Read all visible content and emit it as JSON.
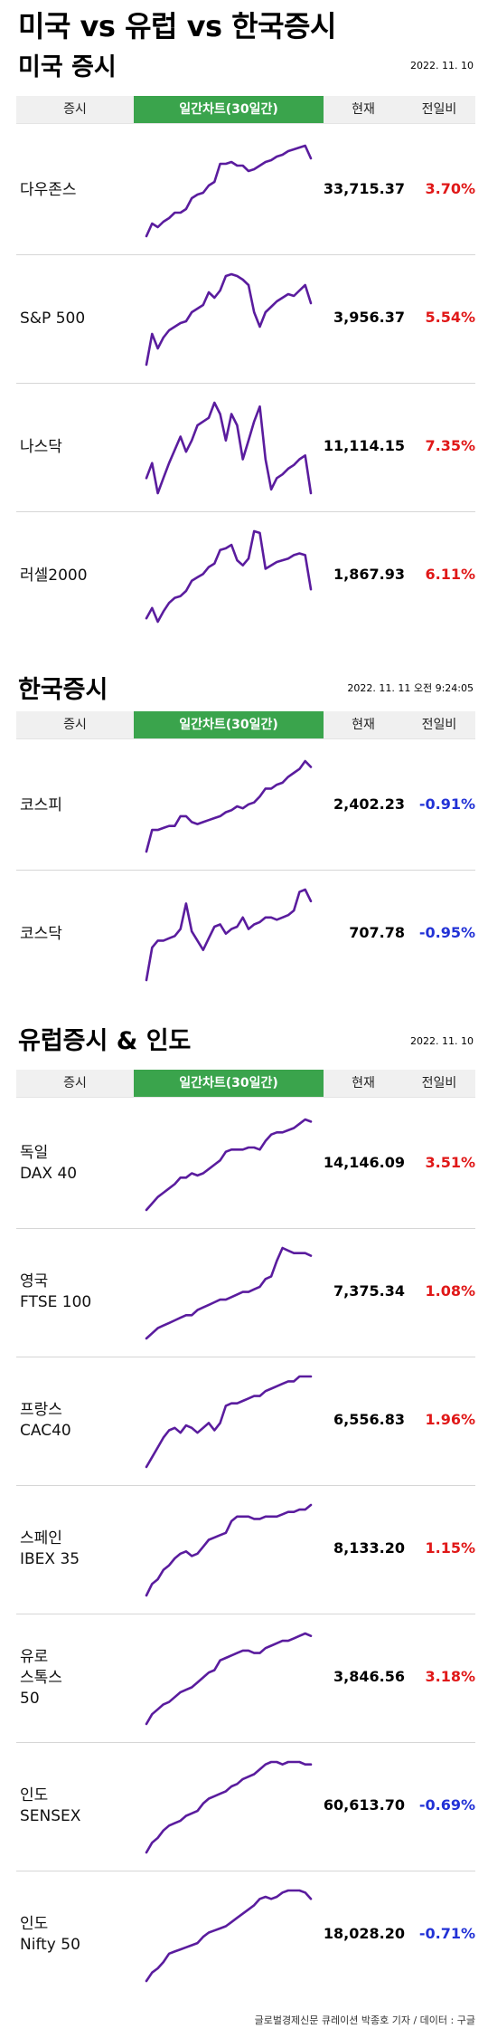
{
  "page": {
    "title": "미국 vs 유럽 vs 한국증시"
  },
  "header_labels": {
    "index": "증시",
    "chart": "일간차트(30일간)",
    "current": "현재",
    "change": "전일비"
  },
  "colors": {
    "line": "#5a1c9e",
    "header_accent": "#3aa44c",
    "up": "#e01818",
    "down": "#2232d6"
  },
  "sections": [
    {
      "title": "미국 증시",
      "date": "2022. 11. 10",
      "rows": [
        {
          "name": "다우존스",
          "current": "33,715.37",
          "change": "3.70%",
          "direction": "up",
          "series": [
            1,
            8,
            6,
            9,
            11,
            14,
            14,
            16,
            22,
            24,
            25,
            29,
            31,
            41,
            41,
            42,
            40,
            40,
            37,
            38,
            40,
            42,
            43,
            45,
            46,
            48,
            49,
            50,
            51,
            44
          ]
        },
        {
          "name": "S&P 500",
          "current": "3,956.37",
          "change": "5.54%",
          "direction": "up",
          "series": [
            1,
            18,
            10,
            16,
            20,
            22,
            24,
            25,
            30,
            32,
            34,
            41,
            38,
            42,
            50,
            51,
            50,
            48,
            45,
            30,
            22,
            30,
            33,
            36,
            38,
            40,
            39,
            42,
            45,
            35
          ]
        },
        {
          "name": "나스닥",
          "current": "11,114.15",
          "change": "7.35%",
          "direction": "up",
          "series": [
            10,
            18,
            2,
            10,
            18,
            25,
            32,
            24,
            30,
            38,
            40,
            42,
            50,
            44,
            30,
            44,
            38,
            20,
            30,
            40,
            48,
            20,
            4,
            10,
            12,
            15,
            17,
            20,
            22,
            2
          ]
        },
        {
          "name": "러셀2000",
          "current": "1,867.93",
          "change": "6.11%",
          "direction": "up",
          "series": [
            3,
            9,
            1,
            7,
            12,
            15,
            16,
            19,
            25,
            27,
            29,
            33,
            35,
            43,
            44,
            46,
            37,
            34,
            38,
            54,
            53,
            32,
            34,
            36,
            37,
            38,
            40,
            41,
            40,
            20
          ]
        }
      ]
    },
    {
      "title": "한국증시",
      "date": "2022. 11. 11 오전 9:24:05",
      "rows": [
        {
          "name": "코스피",
          "current": "2,402.23",
          "change": "-0.91%",
          "direction": "down",
          "series": [
            1,
            12,
            12,
            13,
            14,
            14,
            19,
            19,
            16,
            15,
            16,
            17,
            18,
            19,
            21,
            22,
            24,
            23,
            25,
            26,
            29,
            33,
            33,
            35,
            36,
            39,
            41,
            43,
            47,
            44
          ]
        },
        {
          "name": "코스닥",
          "current": "707.78",
          "change": "-0.95%",
          "direction": "down",
          "series": [
            1,
            15,
            18,
            18,
            19,
            20,
            23,
            34,
            22,
            18,
            14,
            19,
            24,
            25,
            21,
            23,
            24,
            28,
            23,
            25,
            26,
            28,
            28,
            27,
            28,
            29,
            31,
            39,
            40,
            35
          ]
        }
      ]
    },
    {
      "title": "유럽증시 & 인도",
      "date": "2022. 11. 10",
      "rows": [
        {
          "name": "독일\nDAX 40",
          "current": "14,146.09",
          "change": "3.51%",
          "direction": "up",
          "series": [
            1,
            4,
            7,
            9,
            11,
            13,
            16,
            16,
            18,
            17,
            18,
            20,
            22,
            24,
            28,
            29,
            29,
            29,
            30,
            30,
            29,
            33,
            36,
            37,
            37,
            38,
            39,
            41,
            43,
            42
          ]
        },
        {
          "name": "영국\nFTSE 100",
          "current": "7,375.34",
          "change": "1.08%",
          "direction": "up",
          "series": [
            1,
            3,
            5,
            6,
            7,
            8,
            9,
            10,
            10,
            12,
            13,
            14,
            15,
            16,
            16,
            17,
            18,
            19,
            19,
            20,
            21,
            24,
            25,
            31,
            36,
            35,
            34,
            34,
            34,
            33
          ]
        },
        {
          "name": "프랑스\nCAC40",
          "current": "6,556.83",
          "change": "1.96%",
          "direction": "up",
          "series": [
            1,
            5,
            9,
            13,
            16,
            17,
            15,
            18,
            17,
            15,
            17,
            19,
            16,
            19,
            26,
            27,
            27,
            28,
            29,
            30,
            30,
            32,
            33,
            34,
            35,
            36,
            36,
            38,
            38,
            38
          ]
        },
        {
          "name": "스페인\nIBEX 35",
          "current": "8,133.20",
          "change": "1.15%",
          "direction": "up",
          "series": [
            1,
            6,
            8,
            12,
            14,
            17,
            19,
            20,
            18,
            19,
            22,
            25,
            26,
            27,
            28,
            33,
            35,
            35,
            35,
            34,
            34,
            35,
            35,
            35,
            36,
            37,
            37,
            38,
            38,
            40
          ]
        },
        {
          "name": "유로\n스톡스\n50",
          "current": "3,846.56",
          "change": "3.18%",
          "direction": "up",
          "series": [
            1,
            5,
            7,
            9,
            10,
            12,
            14,
            15,
            16,
            18,
            20,
            22,
            23,
            27,
            28,
            29,
            30,
            31,
            31,
            30,
            30,
            32,
            33,
            34,
            35,
            35,
            36,
            37,
            38,
            37
          ]
        },
        {
          "name": "인도\nSENSEX",
          "current": "60,613.70",
          "change": "-0.69%",
          "direction": "down",
          "series": [
            1,
            5,
            7,
            10,
            12,
            13,
            14,
            16,
            17,
            18,
            21,
            23,
            24,
            25,
            26,
            28,
            29,
            31,
            32,
            33,
            35,
            37,
            38,
            38,
            37,
            38,
            38,
            38,
            37,
            37
          ]
        },
        {
          "name": "인도\nNifty 50",
          "current": "18,028.20",
          "change": "-0.71%",
          "direction": "down",
          "series": [
            1,
            5,
            7,
            10,
            14,
            15,
            16,
            17,
            18,
            19,
            22,
            24,
            25,
            26,
            27,
            29,
            31,
            33,
            35,
            37,
            40,
            41,
            40,
            41,
            43,
            44,
            44,
            44,
            43,
            40
          ]
        }
      ]
    }
  ],
  "footer": {
    "credit": "글로벌경제신문 큐레이션 박종호 기자 / 데이터 : 구글"
  }
}
